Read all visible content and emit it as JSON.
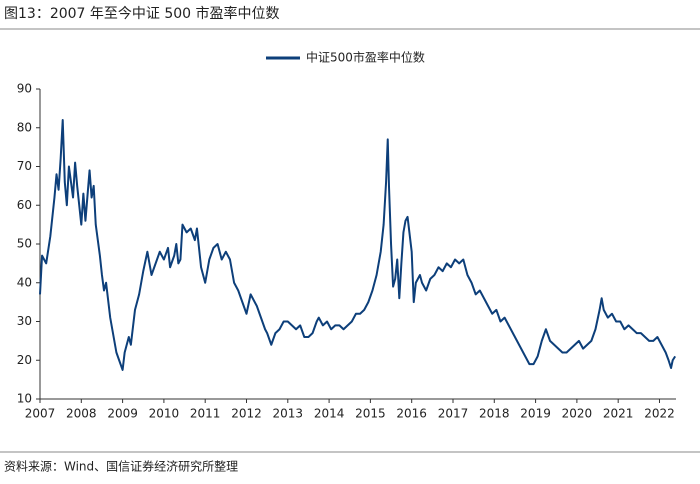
{
  "chart_data": {
    "type": "line",
    "title": "图13：2007 年至今中证 500 市盈率中位数",
    "source": "资料来源：Wind、国信证券经济研究所整理",
    "x": [
      2007.0,
      2007.05,
      2007.15,
      2007.25,
      2007.35,
      2007.4,
      2007.45,
      2007.5,
      2007.55,
      2007.6,
      2007.65,
      2007.7,
      2007.8,
      2007.85,
      2007.9,
      2008.0,
      2008.05,
      2008.1,
      2008.2,
      2008.25,
      2008.3,
      2008.35,
      2008.45,
      2008.5,
      2008.55,
      2008.6,
      2008.7,
      2008.75,
      2008.85,
      2008.95,
      2009.0,
      2009.05,
      2009.15,
      2009.2,
      2009.3,
      2009.4,
      2009.5,
      2009.6,
      2009.7,
      2009.8,
      2009.9,
      2010.0,
      2010.1,
      2010.15,
      2010.25,
      2010.3,
      2010.35,
      2010.4,
      2010.45,
      2010.55,
      2010.65,
      2010.75,
      2010.8,
      2010.9,
      2011.0,
      2011.1,
      2011.2,
      2011.3,
      2011.4,
      2011.5,
      2011.6,
      2011.7,
      2011.8,
      2011.9,
      2012.0,
      2012.1,
      2012.15,
      2012.25,
      2012.35,
      2012.45,
      2012.5,
      2012.6,
      2012.7,
      2012.8,
      2012.9,
      2013.0,
      2013.1,
      2013.2,
      2013.3,
      2013.4,
      2013.5,
      2013.6,
      2013.7,
      2013.75,
      2013.85,
      2013.95,
      2014.05,
      2014.15,
      2014.25,
      2014.35,
      2014.45,
      2014.55,
      2014.65,
      2014.75,
      2014.85,
      2014.95,
      2015.05,
      2015.15,
      2015.25,
      2015.32,
      2015.38,
      2015.42,
      2015.45,
      2015.5,
      2015.55,
      2015.6,
      2015.65,
      2015.7,
      2015.75,
      2015.8,
      2015.85,
      2015.9,
      2016.0,
      2016.05,
      2016.1,
      2016.2,
      2016.25,
      2016.35,
      2016.45,
      2016.55,
      2016.65,
      2016.75,
      2016.85,
      2016.95,
      2017.05,
      2017.15,
      2017.25,
      2017.35,
      2017.45,
      2017.55,
      2017.65,
      2017.75,
      2017.85,
      2017.95,
      2018.05,
      2018.15,
      2018.25,
      2018.35,
      2018.45,
      2018.55,
      2018.65,
      2018.75,
      2018.85,
      2018.95,
      2019.05,
      2019.15,
      2019.25,
      2019.35,
      2019.45,
      2019.55,
      2019.65,
      2019.75,
      2019.85,
      2019.95,
      2020.05,
      2020.15,
      2020.25,
      2020.35,
      2020.45,
      2020.55,
      2020.6,
      2020.65,
      2020.75,
      2020.85,
      2020.95,
      2021.05,
      2021.15,
      2021.25,
      2021.35,
      2021.45,
      2021.55,
      2021.65,
      2021.75,
      2021.85,
      2021.95,
      2022.05,
      2022.15,
      2022.22,
      2022.28,
      2022.32,
      2022.38
    ],
    "series": [
      {
        "name": "中证500市盈率中位数",
        "color": "#0d3f7a",
        "values": [
          37,
          47,
          45,
          52,
          62,
          68,
          64,
          72,
          82,
          66,
          60,
          70,
          62,
          71,
          65,
          55,
          63,
          56,
          69,
          62,
          65,
          55,
          47,
          42,
          38,
          40,
          31,
          28,
          22,
          19,
          17.5,
          22,
          26,
          24,
          33,
          37,
          43,
          48,
          42,
          45,
          48,
          46,
          49,
          44,
          47,
          50,
          45,
          46,
          55,
          53,
          54,
          51,
          54,
          44,
          40,
          46,
          49,
          50,
          46,
          48,
          46,
          40,
          38,
          35,
          32,
          37,
          36,
          34,
          31,
          28,
          27,
          24,
          27,
          28,
          30,
          30,
          29,
          28,
          29,
          26,
          26,
          27,
          30,
          31,
          29,
          30,
          28,
          29,
          29,
          28,
          29,
          30,
          32,
          32,
          33,
          35,
          38,
          42,
          48,
          55,
          66,
          77,
          65,
          50,
          39,
          41,
          46,
          36,
          45,
          53,
          56,
          57,
          48,
          35,
          40,
          42,
          40,
          38,
          41,
          42,
          44,
          43,
          45,
          44,
          46,
          45,
          46,
          42,
          40,
          37,
          38,
          36,
          34,
          32,
          33,
          30,
          31,
          29,
          27,
          25,
          23,
          21,
          19,
          19,
          21,
          25,
          28,
          25,
          24,
          23,
          22,
          22,
          23,
          24,
          25,
          23,
          24,
          25,
          28,
          33,
          36,
          33,
          31,
          32,
          30,
          30,
          28,
          29,
          28,
          27,
          27,
          26,
          25,
          25,
          26,
          24,
          22,
          20,
          18,
          20,
          21
        ]
      }
    ],
    "xlim": [
      2007,
      2022.4
    ],
    "xticks": [
      2007,
      2008,
      2009,
      2010,
      2011,
      2012,
      2013,
      2014,
      2015,
      2016,
      2017,
      2018,
      2019,
      2020,
      2021,
      2022
    ],
    "ylim": [
      10,
      90
    ],
    "yticks": [
      10,
      20,
      30,
      40,
      50,
      60,
      70,
      80,
      90
    ],
    "grid": false
  }
}
